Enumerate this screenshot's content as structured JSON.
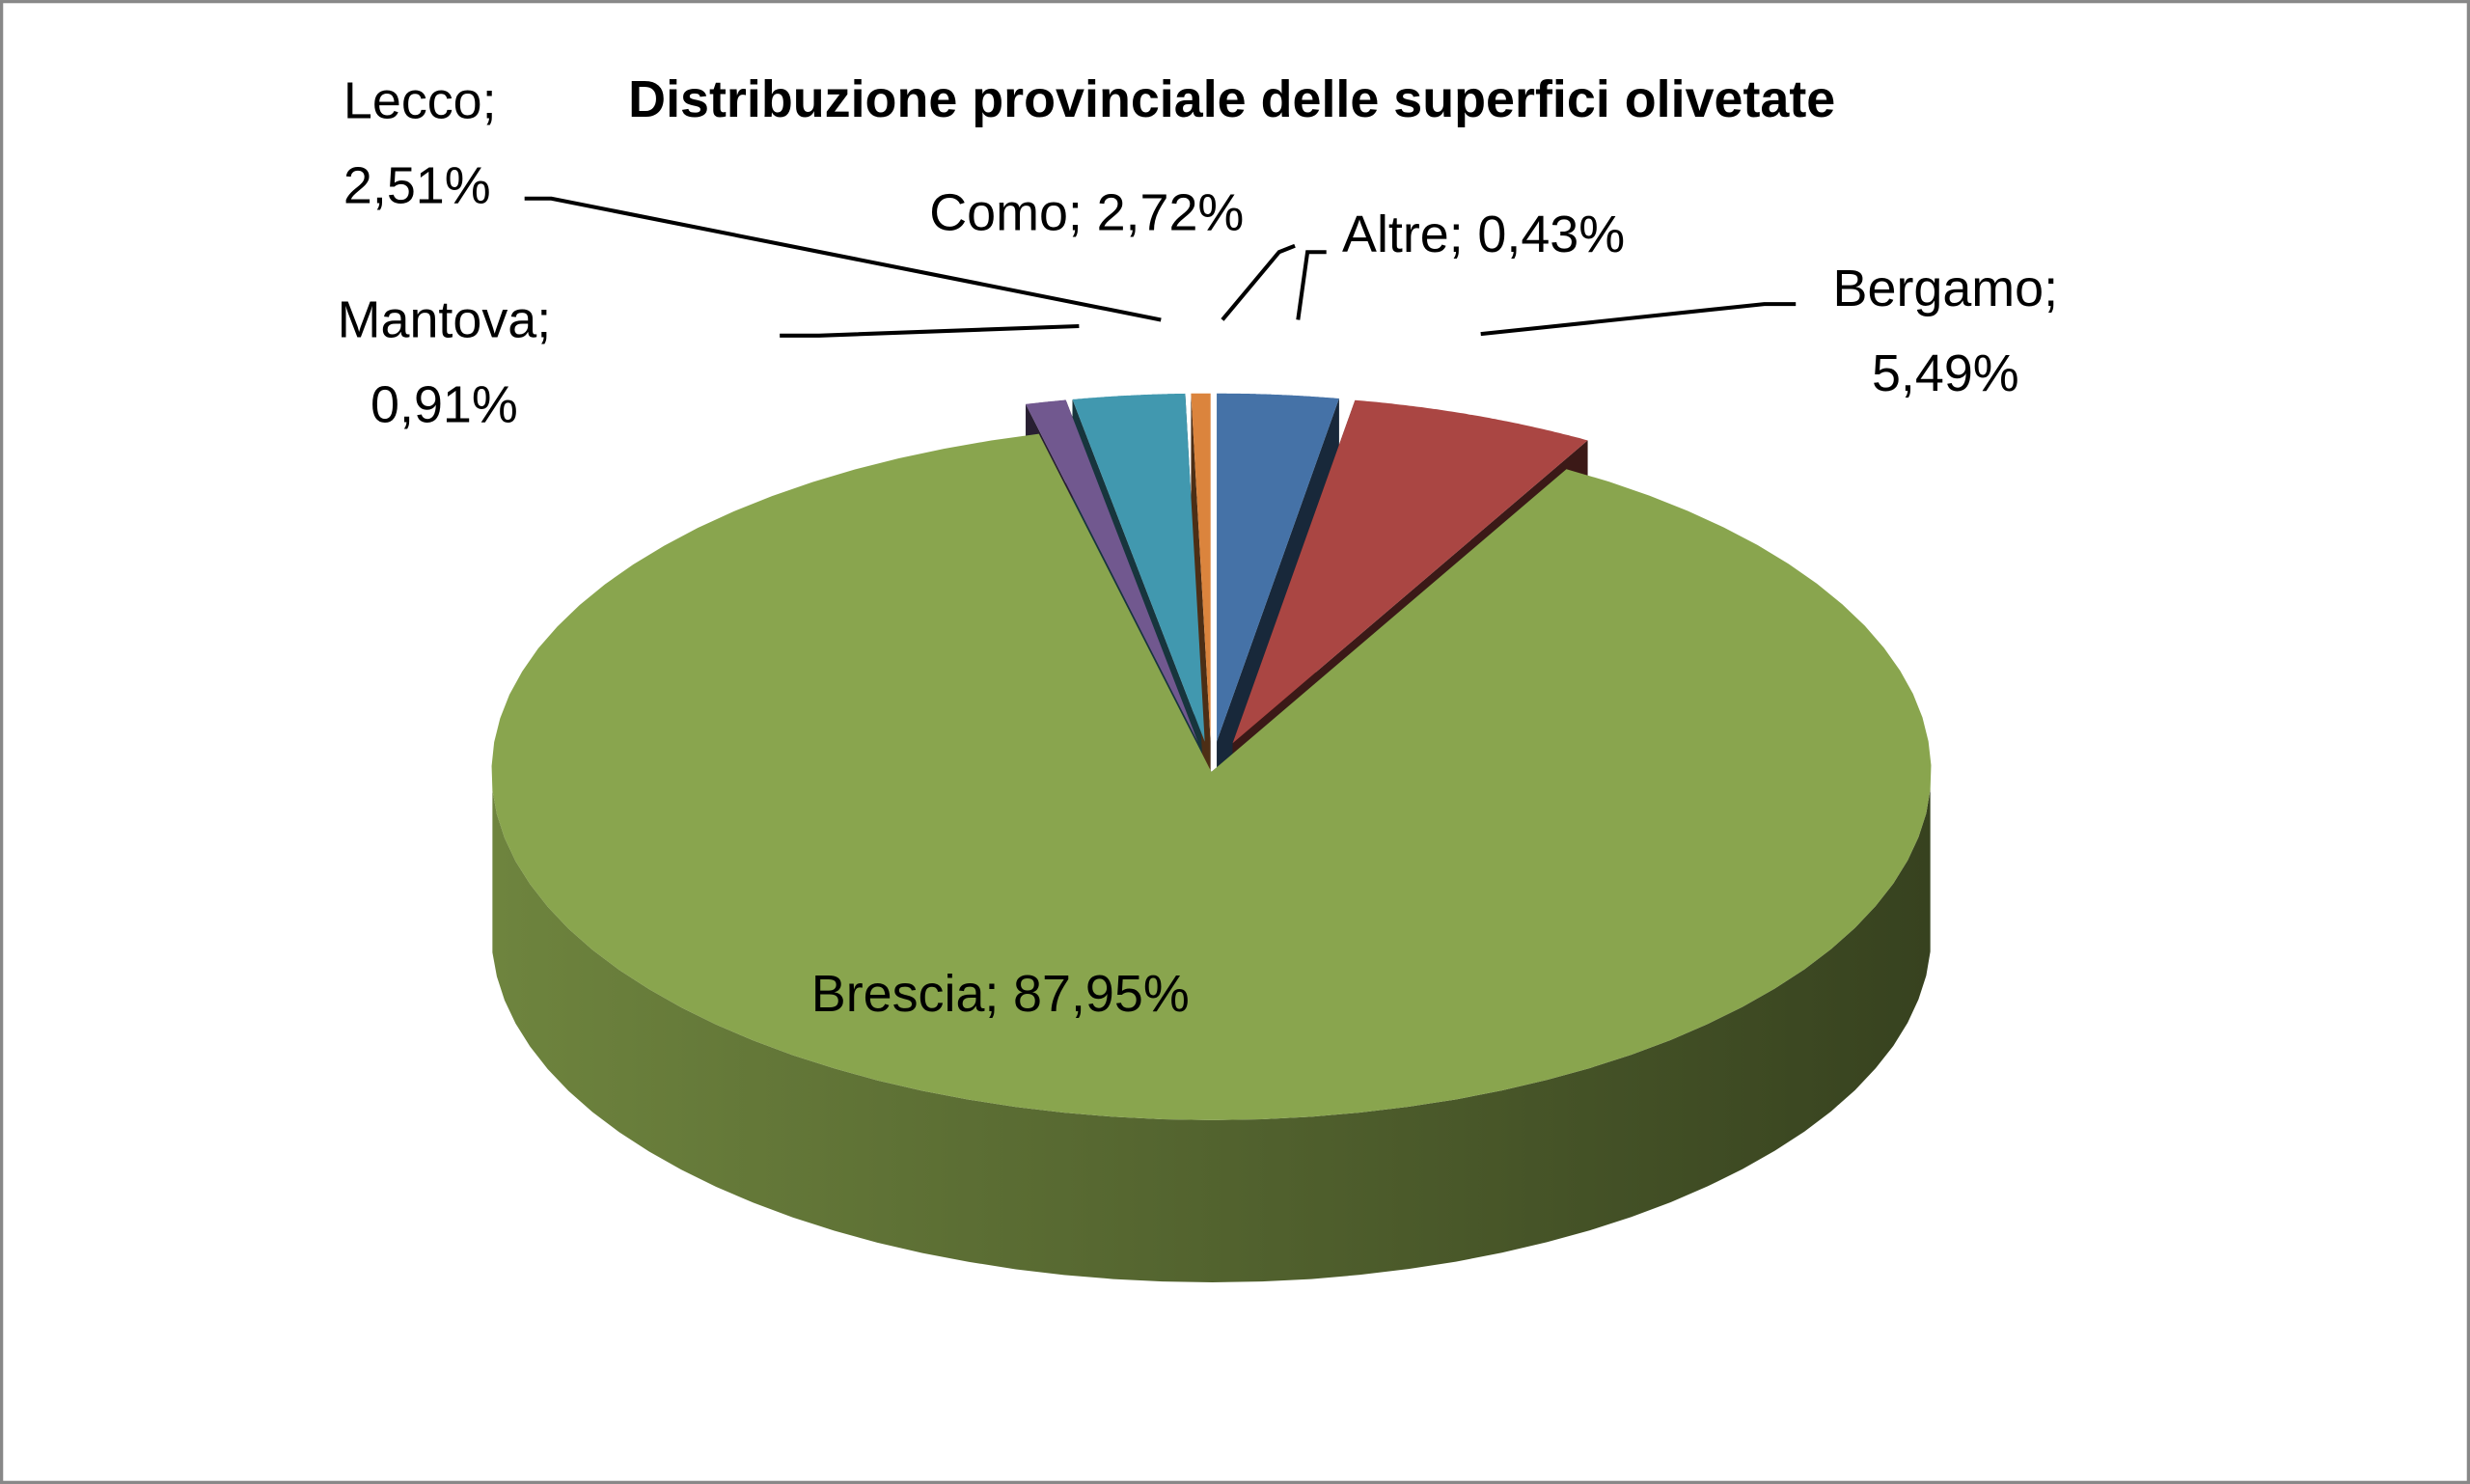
{
  "chart_data": {
    "type": "pie3d",
    "title": "Distribuzione provinciale delle superfici olivetate",
    "categories": [
      "Como",
      "Bergamo",
      "Brescia",
      "Mantova",
      "Lecco",
      "Altre"
    ],
    "values": [
      2.72,
      5.49,
      87.95,
      0.91,
      2.51,
      0.43
    ],
    "value_labels": [
      "2,72%",
      "5,49%",
      "87,95%",
      "0,91%",
      "2,51%",
      "0,43%"
    ],
    "label_separator": ";",
    "colors": [
      "#4572a7",
      "#aa4643",
      "#89a54e",
      "#71588f",
      "#4198af",
      "#db843d"
    ]
  }
}
